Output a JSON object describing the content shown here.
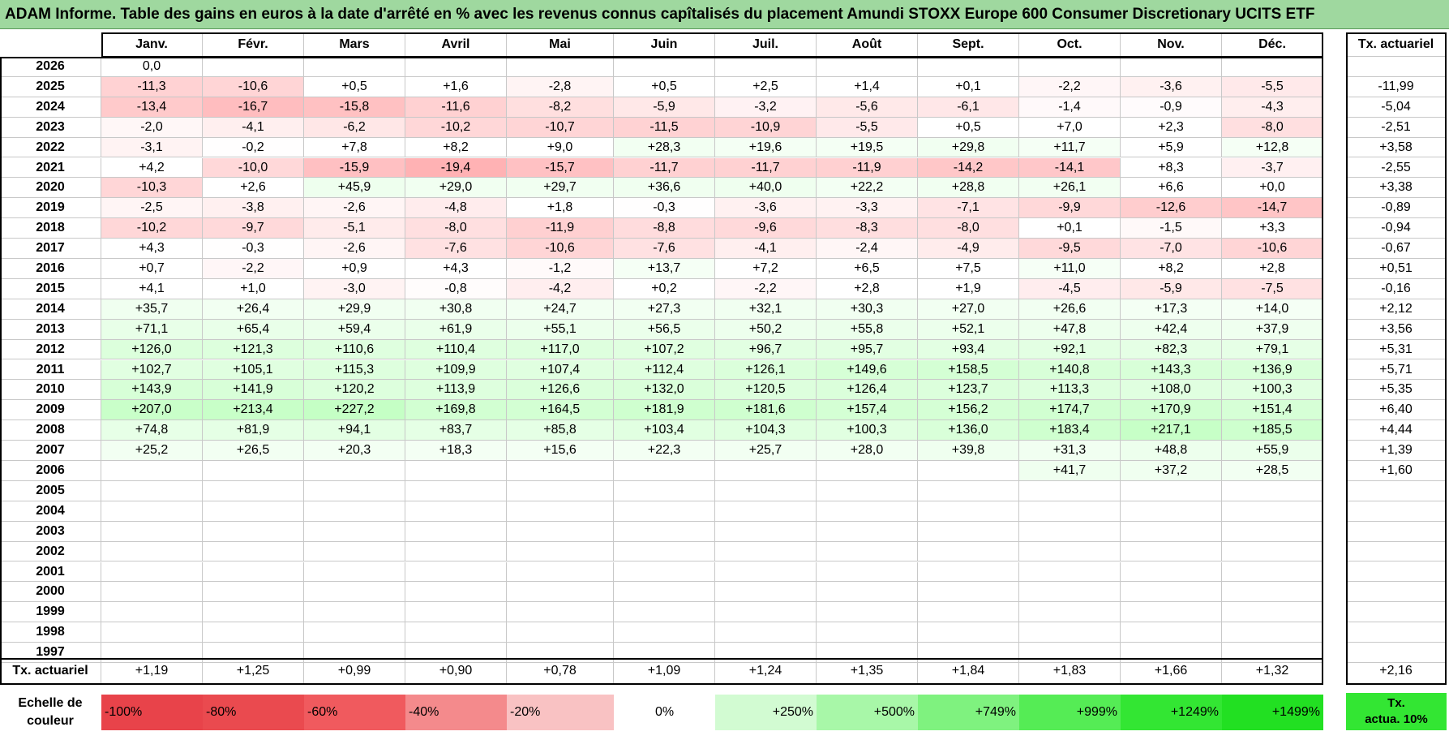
{
  "title": "ADAM Informe. Table des gains en euros à la date d'arrêté en % avec les revenus connus capîtalisés du placement Amundi STOXX Europe 600 Consumer Discretionary UCITS ETF",
  "months": [
    "Janv.",
    "Févr.",
    "Mars",
    "Avril",
    "Mai",
    "Juin",
    "Juil.",
    "Août",
    "Sept.",
    "Oct.",
    "Nov.",
    "Déc."
  ],
  "tx_header": "Tx. actuariel",
  "rows": [
    {
      "year": "2026",
      "values": [
        "0,0",
        "",
        "",
        "",
        "",
        "",
        "",
        "",
        "",
        "",
        "",
        ""
      ],
      "tx": ""
    },
    {
      "year": "2025",
      "values": [
        "-11,3",
        "-10,6",
        "+0,5",
        "+1,6",
        "-2,8",
        "+0,5",
        "+2,5",
        "+1,4",
        "+0,1",
        "-2,2",
        "-3,6",
        "-5,5"
      ],
      "tx": "-11,99"
    },
    {
      "year": "2024",
      "values": [
        "-13,4",
        "-16,7",
        "-15,8",
        "-11,6",
        "-8,2",
        "-5,9",
        "-3,2",
        "-5,6",
        "-6,1",
        "-1,4",
        "-0,9",
        "-4,3"
      ],
      "tx": "-5,04"
    },
    {
      "year": "2023",
      "values": [
        "-2,0",
        "-4,1",
        "-6,2",
        "-10,2",
        "-10,7",
        "-11,5",
        "-10,9",
        "-5,5",
        "+0,5",
        "+7,0",
        "+2,3",
        "-8,0"
      ],
      "tx": "-2,51"
    },
    {
      "year": "2022",
      "values": [
        "-3,1",
        "-0,2",
        "+7,8",
        "+8,2",
        "+9,0",
        "+28,3",
        "+19,6",
        "+19,5",
        "+29,8",
        "+11,7",
        "+5,9",
        "+12,8"
      ],
      "tx": "+3,58"
    },
    {
      "year": "2021",
      "values": [
        "+4,2",
        "-10,0",
        "-15,9",
        "-19,4",
        "-15,7",
        "-11,7",
        "-11,7",
        "-11,9",
        "-14,2",
        "-14,1",
        "+8,3",
        "-3,7"
      ],
      "tx": "-2,55"
    },
    {
      "year": "2020",
      "values": [
        "-10,3",
        "+2,6",
        "+45,9",
        "+29,0",
        "+29,7",
        "+36,6",
        "+40,0",
        "+22,2",
        "+28,8",
        "+26,1",
        "+6,6",
        "+0,0"
      ],
      "tx": "+3,38"
    },
    {
      "year": "2019",
      "values": [
        "-2,5",
        "-3,8",
        "-2,6",
        "-4,8",
        "+1,8",
        "-0,3",
        "-3,6",
        "-3,3",
        "-7,1",
        "-9,9",
        "-12,6",
        "-14,7"
      ],
      "tx": "-0,89"
    },
    {
      "year": "2018",
      "values": [
        "-10,2",
        "-9,7",
        "-5,1",
        "-8,0",
        "-11,9",
        "-8,8",
        "-9,6",
        "-8,3",
        "-8,0",
        "+0,1",
        "-1,5",
        "+3,3"
      ],
      "tx": "-0,94"
    },
    {
      "year": "2017",
      "values": [
        "+4,3",
        "-0,3",
        "-2,6",
        "-7,6",
        "-10,6",
        "-7,6",
        "-4,1",
        "-2,4",
        "-4,9",
        "-9,5",
        "-7,0",
        "-10,6"
      ],
      "tx": "-0,67"
    },
    {
      "year": "2016",
      "values": [
        "+0,7",
        "-2,2",
        "+0,9",
        "+4,3",
        "-1,2",
        "+13,7",
        "+7,2",
        "+6,5",
        "+7,5",
        "+11,0",
        "+8,2",
        "+2,8"
      ],
      "tx": "+0,51"
    },
    {
      "year": "2015",
      "values": [
        "+4,1",
        "+1,0",
        "-3,0",
        "-0,8",
        "-4,2",
        "+0,2",
        "-2,2",
        "+2,8",
        "+1,9",
        "-4,5",
        "-5,9",
        "-7,5"
      ],
      "tx": "-0,16"
    },
    {
      "year": "2014",
      "values": [
        "+35,7",
        "+26,4",
        "+29,9",
        "+30,8",
        "+24,7",
        "+27,3",
        "+32,1",
        "+30,3",
        "+27,0",
        "+26,6",
        "+17,3",
        "+14,0"
      ],
      "tx": "+2,12"
    },
    {
      "year": "2013",
      "values": [
        "+71,1",
        "+65,4",
        "+59,4",
        "+61,9",
        "+55,1",
        "+56,5",
        "+50,2",
        "+55,8",
        "+52,1",
        "+47,8",
        "+42,4",
        "+37,9"
      ],
      "tx": "+3,56"
    },
    {
      "year": "2012",
      "values": [
        "+126,0",
        "+121,3",
        "+110,6",
        "+110,4",
        "+117,0",
        "+107,2",
        "+96,7",
        "+95,7",
        "+93,4",
        "+92,1",
        "+82,3",
        "+79,1"
      ],
      "tx": "+5,31"
    },
    {
      "year": "2011",
      "values": [
        "+102,7",
        "+105,1",
        "+115,3",
        "+109,9",
        "+107,4",
        "+112,4",
        "+126,1",
        "+149,6",
        "+158,5",
        "+140,8",
        "+143,3",
        "+136,9"
      ],
      "tx": "+5,71"
    },
    {
      "year": "2010",
      "values": [
        "+143,9",
        "+141,9",
        "+120,2",
        "+113,9",
        "+126,6",
        "+132,0",
        "+120,5",
        "+126,4",
        "+123,7",
        "+113,3",
        "+108,0",
        "+100,3"
      ],
      "tx": "+5,35"
    },
    {
      "year": "2009",
      "values": [
        "+207,0",
        "+213,4",
        "+227,2",
        "+169,8",
        "+164,5",
        "+181,9",
        "+181,6",
        "+157,4",
        "+156,2",
        "+174,7",
        "+170,9",
        "+151,4"
      ],
      "tx": "+6,40"
    },
    {
      "year": "2008",
      "values": [
        "+74,8",
        "+81,9",
        "+94,1",
        "+83,7",
        "+85,8",
        "+103,4",
        "+104,3",
        "+100,3",
        "+136,0",
        "+183,4",
        "+217,1",
        "+185,5"
      ],
      "tx": "+4,44"
    },
    {
      "year": "2007",
      "values": [
        "+25,2",
        "+26,5",
        "+20,3",
        "+18,3",
        "+15,6",
        "+22,3",
        "+25,7",
        "+28,0",
        "+39,8",
        "+31,3",
        "+48,8",
        "+55,9"
      ],
      "tx": "+1,39"
    },
    {
      "year": "2006",
      "values": [
        "",
        "",
        "",
        "",
        "",
        "",
        "",
        "",
        "",
        "+41,7",
        "+37,2",
        "+28,5"
      ],
      "tx": "+1,60"
    },
    {
      "year": "2005",
      "values": [
        "",
        "",
        "",
        "",
        "",
        "",
        "",
        "",
        "",
        "",
        "",
        ""
      ],
      "tx": ""
    },
    {
      "year": "2004",
      "values": [
        "",
        "",
        "",
        "",
        "",
        "",
        "",
        "",
        "",
        "",
        "",
        ""
      ],
      "tx": ""
    },
    {
      "year": "2003",
      "values": [
        "",
        "",
        "",
        "",
        "",
        "",
        "",
        "",
        "",
        "",
        "",
        ""
      ],
      "tx": ""
    },
    {
      "year": "2002",
      "values": [
        "",
        "",
        "",
        "",
        "",
        "",
        "",
        "",
        "",
        "",
        "",
        ""
      ],
      "tx": ""
    },
    {
      "year": "2001",
      "values": [
        "",
        "",
        "",
        "",
        "",
        "",
        "",
        "",
        "",
        "",
        "",
        ""
      ],
      "tx": ""
    },
    {
      "year": "2000",
      "values": [
        "",
        "",
        "",
        "",
        "",
        "",
        "",
        "",
        "",
        "",
        "",
        ""
      ],
      "tx": ""
    },
    {
      "year": "1999",
      "values": [
        "",
        "",
        "",
        "",
        "",
        "",
        "",
        "",
        "",
        "",
        "",
        ""
      ],
      "tx": ""
    },
    {
      "year": "1998",
      "values": [
        "",
        "",
        "",
        "",
        "",
        "",
        "",
        "",
        "",
        "",
        "",
        ""
      ],
      "tx": ""
    },
    {
      "year": "1997",
      "values": [
        "",
        "",
        "",
        "",
        "",
        "",
        "",
        "",
        "",
        "",
        "",
        ""
      ],
      "tx": ""
    }
  ],
  "footer": {
    "label": "Tx. actuariel",
    "values": [
      "+1,19",
      "+1,25",
      "+0,99",
      "+0,90",
      "+0,78",
      "+1,09",
      "+1,24",
      "+1,35",
      "+1,84",
      "+1,83",
      "+1,66",
      "+1,32"
    ],
    "tx": "+2,16"
  },
  "scale": {
    "label_line1": "Echelle de",
    "label_line2": "couleur",
    "items": [
      {
        "text": "-100%",
        "color": "#e8434a",
        "align": "left"
      },
      {
        "text": "-80%",
        "color": "#ea4a4f",
        "align": "left"
      },
      {
        "text": "-60%",
        "color": "#f05a5e",
        "align": "left"
      },
      {
        "text": "-40%",
        "color": "#f48a8c",
        "align": "left"
      },
      {
        "text": "-20%",
        "color": "#f9c2c3",
        "align": "left"
      },
      {
        "text": "0%",
        "color": "#ffffff",
        "align": "center"
      },
      {
        "text": "+250%",
        "color": "#d2fbd2",
        "align": "right"
      },
      {
        "text": "+500%",
        "color": "#a8f7a8",
        "align": "right"
      },
      {
        "text": "+749%",
        "color": "#7ff27f",
        "align": "right"
      },
      {
        "text": "+999%",
        "color": "#55ec55",
        "align": "right"
      },
      {
        "text": "+1249%",
        "color": "#33e633",
        "align": "right"
      },
      {
        "text": "+1499%",
        "color": "#22e022",
        "align": "right"
      }
    ],
    "tx_line1": "Tx.",
    "tx_line2": "actua. 10%",
    "tx_color": "#33e633"
  }
}
